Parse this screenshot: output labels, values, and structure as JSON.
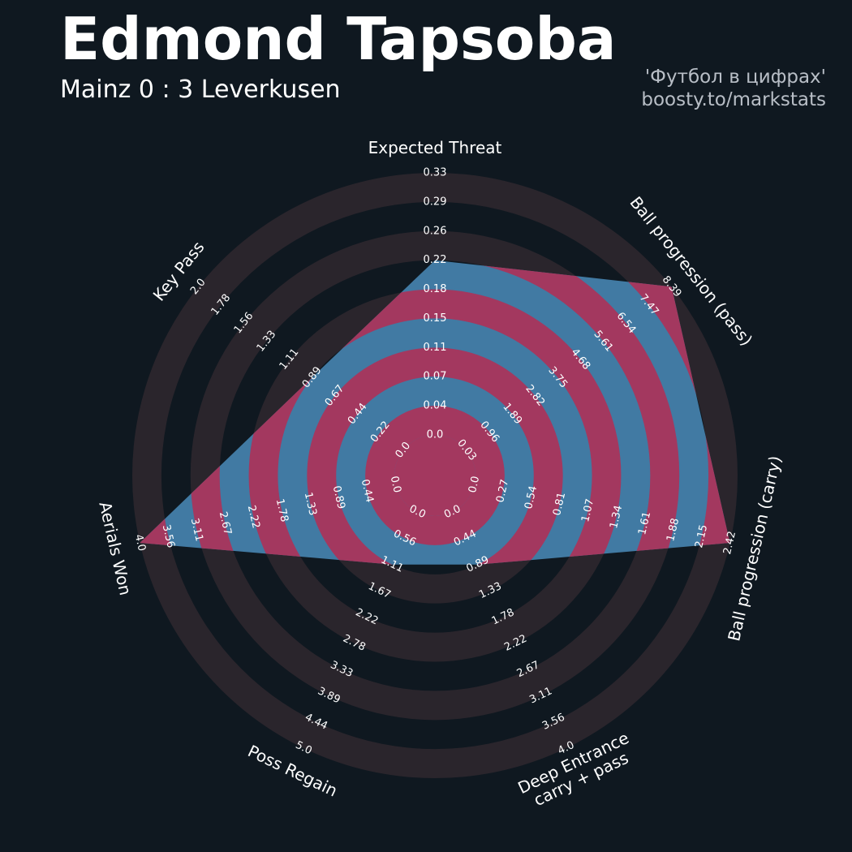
{
  "header": {
    "title": "Edmond Tapsoba",
    "subtitle": "Mainz 0 : 3 Leverkusen",
    "credit_line1": "'Футбол в цифрах'",
    "credit_line2": "boosty.to/markstats"
  },
  "colors": {
    "background": "#0f1820",
    "ring_fill": "#2a252c",
    "radar_fill": "#417aa3",
    "radar_highlight": "#a3385f",
    "label_text": "#ffffff",
    "credit_text": "#b8bec6"
  },
  "chart_data": {
    "type": "radar",
    "title": "",
    "axes": [
      {
        "label": "Expected Threat",
        "value": 0.22,
        "range": [
          0.0,
          0.33
        ],
        "ticks": [
          "0.0",
          "0.04",
          "0.07",
          "0.11",
          "0.15",
          "0.18",
          "0.22",
          "0.26",
          "0.29",
          "0.33"
        ]
      },
      {
        "label": "Ball progression (pass)",
        "value": 8.39,
        "range": [
          0.03,
          8.39
        ],
        "ticks": [
          "0.03",
          "0.96",
          "1.89",
          "2.82",
          "3.75",
          "4.68",
          "5.61",
          "6.54",
          "7.47",
          "8.39"
        ]
      },
      {
        "label": "Ball progression (carry)",
        "value": 2.42,
        "range": [
          0.0,
          2.42
        ],
        "ticks": [
          "0.0",
          "0.27",
          "0.54",
          "0.81",
          "1.07",
          "1.34",
          "1.61",
          "1.88",
          "2.15",
          "2.42"
        ]
      },
      {
        "label": "Deep Entrance\ncarry + pass",
        "value": 0.89,
        "range": [
          0.0,
          4.0
        ],
        "ticks": [
          "0.0",
          "0.44",
          "0.89",
          "1.33",
          "1.78",
          "2.22",
          "2.67",
          "3.11",
          "3.56",
          "4.0"
        ]
      },
      {
        "label": "Poss Regain",
        "value": 1.11,
        "range": [
          0.0,
          5.0
        ],
        "ticks": [
          "0.0",
          "0.56",
          "1.11",
          "1.67",
          "2.22",
          "2.78",
          "3.33",
          "3.89",
          "4.44",
          "5.0"
        ]
      },
      {
        "label": "Aerials Won",
        "value": 4.0,
        "range": [
          0.0,
          4.0
        ],
        "ticks": [
          "0.0",
          "0.44",
          "0.89",
          "1.33",
          "1.78",
          "2.22",
          "2.67",
          "3.11",
          "3.56",
          "4.0"
        ]
      },
      {
        "label": "Key Pass",
        "value": 0.89,
        "range": [
          0.0,
          2.0
        ],
        "ticks": [
          "0.0",
          "0.22",
          "0.44",
          "0.67",
          "0.89",
          "1.11",
          "1.33",
          "1.56",
          "1.78",
          "2.0"
        ]
      }
    ]
  }
}
